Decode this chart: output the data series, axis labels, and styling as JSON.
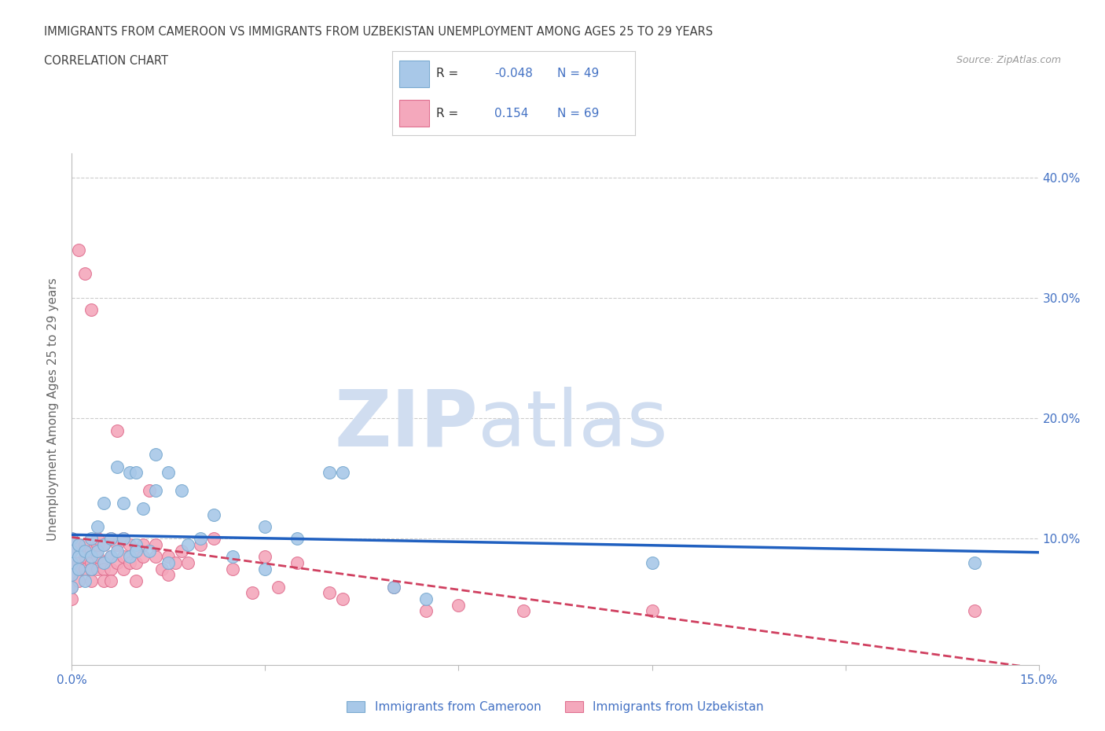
{
  "title_line1": "IMMIGRANTS FROM CAMEROON VS IMMIGRANTS FROM UZBEKISTAN UNEMPLOYMENT AMONG AGES 25 TO 29 YEARS",
  "title_line2": "CORRELATION CHART",
  "source_text": "Source: ZipAtlas.com",
  "ylabel": "Unemployment Among Ages 25 to 29 years",
  "xlim": [
    0.0,
    0.15
  ],
  "ylim": [
    -0.005,
    0.42
  ],
  "cameroon_color": "#a8c8e8",
  "uzbekistan_color": "#f4a8bc",
  "cameroon_edge": "#7aaad0",
  "uzbekistan_edge": "#e07090",
  "trendline_cameroon_color": "#2060c0",
  "trendline_uzbekistan_color": "#d04060",
  "watermark_color": "#d0ddf0",
  "background_color": "#ffffff",
  "grid_color": "#cccccc",
  "axis_label_color": "#4472c4",
  "title_color": "#404040",
  "cameroon_x": [
    0.0,
    0.0,
    0.0,
    0.0,
    0.0,
    0.001,
    0.001,
    0.001,
    0.002,
    0.002,
    0.003,
    0.003,
    0.003,
    0.004,
    0.004,
    0.005,
    0.005,
    0.005,
    0.006,
    0.006,
    0.007,
    0.007,
    0.008,
    0.008,
    0.009,
    0.009,
    0.01,
    0.01,
    0.01,
    0.011,
    0.012,
    0.013,
    0.013,
    0.015,
    0.015,
    0.017,
    0.018,
    0.02,
    0.022,
    0.025,
    0.03,
    0.03,
    0.035,
    0.04,
    0.042,
    0.05,
    0.055,
    0.09,
    0.14
  ],
  "cameroon_y": [
    0.08,
    0.09,
    0.07,
    0.1,
    0.06,
    0.085,
    0.095,
    0.075,
    0.09,
    0.065,
    0.085,
    0.1,
    0.075,
    0.09,
    0.11,
    0.08,
    0.095,
    0.13,
    0.085,
    0.1,
    0.09,
    0.16,
    0.1,
    0.13,
    0.085,
    0.155,
    0.095,
    0.155,
    0.09,
    0.125,
    0.09,
    0.17,
    0.14,
    0.155,
    0.08,
    0.14,
    0.095,
    0.1,
    0.12,
    0.085,
    0.11,
    0.075,
    0.1,
    0.155,
    0.155,
    0.06,
    0.05,
    0.08,
    0.08
  ],
  "uzbekistan_x": [
    0.0,
    0.0,
    0.0,
    0.0,
    0.0,
    0.0,
    0.001,
    0.001,
    0.001,
    0.001,
    0.001,
    0.002,
    0.002,
    0.002,
    0.002,
    0.003,
    0.003,
    0.003,
    0.003,
    0.003,
    0.004,
    0.004,
    0.004,
    0.004,
    0.005,
    0.005,
    0.005,
    0.005,
    0.006,
    0.006,
    0.006,
    0.006,
    0.007,
    0.007,
    0.007,
    0.008,
    0.008,
    0.008,
    0.009,
    0.009,
    0.01,
    0.01,
    0.01,
    0.011,
    0.011,
    0.012,
    0.013,
    0.013,
    0.014,
    0.015,
    0.015,
    0.016,
    0.017,
    0.018,
    0.02,
    0.022,
    0.025,
    0.028,
    0.03,
    0.032,
    0.035,
    0.04,
    0.042,
    0.05,
    0.055,
    0.06,
    0.07,
    0.09,
    0.14
  ],
  "uzbekistan_y": [
    0.08,
    0.09,
    0.07,
    0.06,
    0.1,
    0.05,
    0.08,
    0.095,
    0.075,
    0.065,
    0.34,
    0.085,
    0.095,
    0.075,
    0.32,
    0.08,
    0.09,
    0.065,
    0.075,
    0.29,
    0.085,
    0.095,
    0.075,
    0.1,
    0.08,
    0.095,
    0.075,
    0.065,
    0.085,
    0.1,
    0.075,
    0.065,
    0.08,
    0.095,
    0.19,
    0.085,
    0.075,
    0.1,
    0.08,
    0.095,
    0.09,
    0.08,
    0.065,
    0.085,
    0.095,
    0.14,
    0.085,
    0.095,
    0.075,
    0.085,
    0.07,
    0.08,
    0.09,
    0.08,
    0.095,
    0.1,
    0.075,
    0.055,
    0.085,
    0.06,
    0.08,
    0.055,
    0.05,
    0.06,
    0.04,
    0.045,
    0.04,
    0.04,
    0.04
  ]
}
